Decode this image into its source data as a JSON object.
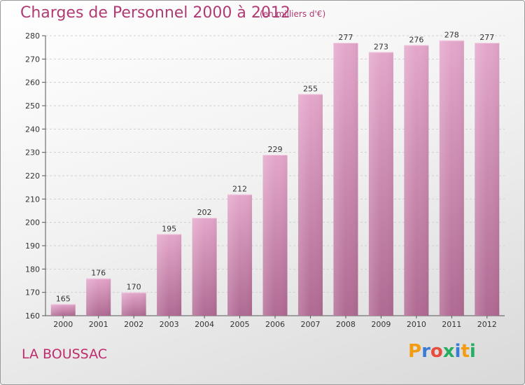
{
  "chart_data": {
    "type": "bar",
    "title": "Charges de Personnel 2000 à 2012",
    "subtitle": "(en milliers d'€)",
    "categories": [
      "2000",
      "2001",
      "2002",
      "2003",
      "2004",
      "2005",
      "2006",
      "2007",
      "2008",
      "2009",
      "2010",
      "2011",
      "2012"
    ],
    "values": [
      165,
      176,
      170,
      195,
      202,
      212,
      229,
      255,
      277,
      273,
      276,
      278,
      277
    ],
    "ylim": [
      160,
      280
    ],
    "yticks": [
      160,
      170,
      180,
      190,
      200,
      210,
      220,
      230,
      240,
      250,
      260,
      270,
      280
    ],
    "grid": true,
    "legend": "none",
    "bar_color": "#d98cba"
  },
  "footer": {
    "place": "LA BOUSSAC",
    "brand": "Proxiti"
  },
  "colors": {
    "title": "#b03a73",
    "place": "#c02b6b",
    "logo_letters": [
      "#f39c12",
      "#3a7bd5",
      "#e74c3c",
      "#27ae60",
      "#3a7bd5",
      "#f39c12",
      "#27ae60"
    ]
  }
}
